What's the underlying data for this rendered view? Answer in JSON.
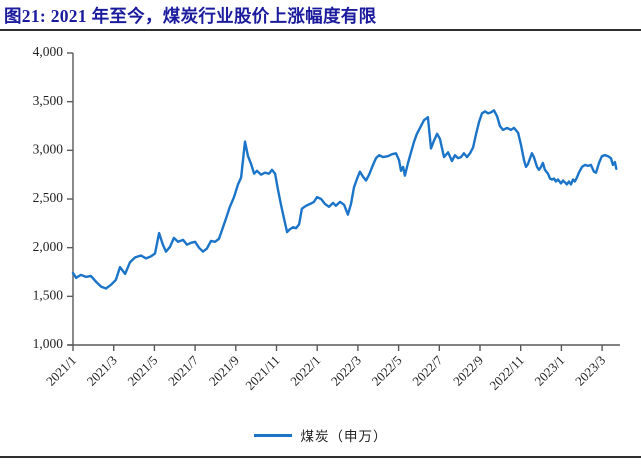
{
  "header": {
    "title": "图21:  2021 年至今，煤炭行业股价上涨幅度有限"
  },
  "chart_data": {
    "type": "line",
    "title": "图21:  2021 年至今，煤炭行业股价上涨幅度有限",
    "xlabel": "",
    "ylabel": "",
    "ylim": [
      1000,
      4000
    ],
    "y_tick_step": 500,
    "y_ticks": [
      {
        "value": 4000,
        "label": "4,000"
      },
      {
        "value": 3500,
        "label": "3,500"
      },
      {
        "value": 3000,
        "label": "3,000"
      },
      {
        "value": 2500,
        "label": "2,500"
      },
      {
        "value": 2000,
        "label": "2,000"
      },
      {
        "value": 1500,
        "label": "1,500"
      },
      {
        "value": 1000,
        "label": "1,000"
      }
    ],
    "x_ticks": [
      {
        "month": 0,
        "label": "2021/1"
      },
      {
        "month": 2,
        "label": "2021/3"
      },
      {
        "month": 4,
        "label": "2021/5"
      },
      {
        "month": 6,
        "label": "2021/7"
      },
      {
        "month": 8,
        "label": "2021/9"
      },
      {
        "month": 10,
        "label": "2021/11"
      },
      {
        "month": 12,
        "label": "2022/1"
      },
      {
        "month": 14,
        "label": "2022/3"
      },
      {
        "month": 16,
        "label": "2022/5"
      },
      {
        "month": 18,
        "label": "2022/7"
      },
      {
        "month": 20,
        "label": "2022/9"
      },
      {
        "month": 22,
        "label": "2022/11"
      },
      {
        "month": 24,
        "label": "2023/1"
      },
      {
        "month": 26,
        "label": "2023/3"
      }
    ],
    "grid": false,
    "legend_position": "bottom-center",
    "line_color": "#1b74c8",
    "series": [
      {
        "name": "煤炭（申万）",
        "color": "#1b74c8",
        "points": [
          [
            0.0,
            1740
          ],
          [
            0.15,
            1690
          ],
          [
            0.39,
            1720
          ],
          [
            0.64,
            1700
          ],
          [
            0.88,
            1710
          ],
          [
            1.13,
            1650
          ],
          [
            1.38,
            1600
          ],
          [
            1.62,
            1580
          ],
          [
            1.87,
            1620
          ],
          [
            2.11,
            1670
          ],
          [
            2.31,
            1800
          ],
          [
            2.56,
            1730
          ],
          [
            2.8,
            1850
          ],
          [
            3.05,
            1900
          ],
          [
            3.34,
            1920
          ],
          [
            3.59,
            1890
          ],
          [
            3.83,
            1910
          ],
          [
            4.03,
            1940
          ],
          [
            4.23,
            2150
          ],
          [
            4.42,
            2030
          ],
          [
            4.57,
            1960
          ],
          [
            4.77,
            2010
          ],
          [
            4.96,
            2100
          ],
          [
            5.16,
            2060
          ],
          [
            5.41,
            2080
          ],
          [
            5.6,
            2030
          ],
          [
            5.8,
            2050
          ],
          [
            6.0,
            2060
          ],
          [
            6.19,
            2000
          ],
          [
            6.39,
            1960
          ],
          [
            6.58,
            1990
          ],
          [
            6.78,
            2070
          ],
          [
            6.98,
            2060
          ],
          [
            7.17,
            2090
          ],
          [
            7.32,
            2180
          ],
          [
            7.52,
            2300
          ],
          [
            7.71,
            2420
          ],
          [
            7.91,
            2520
          ],
          [
            8.11,
            2650
          ],
          [
            8.26,
            2720
          ],
          [
            8.45,
            3090
          ],
          [
            8.6,
            2940
          ],
          [
            8.75,
            2860
          ],
          [
            8.9,
            2760
          ],
          [
            9.04,
            2790
          ],
          [
            9.24,
            2750
          ],
          [
            9.43,
            2770
          ],
          [
            9.63,
            2760
          ],
          [
            9.78,
            2800
          ],
          [
            9.93,
            2760
          ],
          [
            10.07,
            2600
          ],
          [
            10.22,
            2440
          ],
          [
            10.37,
            2300
          ],
          [
            10.52,
            2160
          ],
          [
            10.66,
            2190
          ],
          [
            10.81,
            2210
          ],
          [
            10.96,
            2200
          ],
          [
            11.11,
            2240
          ],
          [
            11.25,
            2400
          ],
          [
            11.45,
            2430
          ],
          [
            11.65,
            2450
          ],
          [
            11.84,
            2470
          ],
          [
            11.99,
            2520
          ],
          [
            12.19,
            2500
          ],
          [
            12.38,
            2450
          ],
          [
            12.58,
            2420
          ],
          [
            12.78,
            2460
          ],
          [
            12.92,
            2430
          ],
          [
            13.12,
            2470
          ],
          [
            13.32,
            2440
          ],
          [
            13.51,
            2340
          ],
          [
            13.66,
            2450
          ],
          [
            13.81,
            2620
          ],
          [
            13.96,
            2710
          ],
          [
            14.1,
            2780
          ],
          [
            14.25,
            2730
          ],
          [
            14.4,
            2690
          ],
          [
            14.55,
            2750
          ],
          [
            14.74,
            2850
          ],
          [
            14.89,
            2920
          ],
          [
            15.04,
            2950
          ],
          [
            15.23,
            2930
          ],
          [
            15.48,
            2940
          ],
          [
            15.68,
            2960
          ],
          [
            15.87,
            2970
          ],
          [
            16.02,
            2900
          ],
          [
            16.12,
            2790
          ],
          [
            16.22,
            2830
          ],
          [
            16.31,
            2740
          ],
          [
            16.46,
            2870
          ],
          [
            16.61,
            2980
          ],
          [
            16.76,
            3090
          ],
          [
            16.9,
            3170
          ],
          [
            17.05,
            3230
          ],
          [
            17.25,
            3310
          ],
          [
            17.44,
            3340
          ],
          [
            17.59,
            3020
          ],
          [
            17.74,
            3100
          ],
          [
            17.89,
            3170
          ],
          [
            18.03,
            3120
          ],
          [
            18.23,
            2930
          ],
          [
            18.43,
            2980
          ],
          [
            18.62,
            2890
          ],
          [
            18.77,
            2950
          ],
          [
            18.92,
            2920
          ],
          [
            19.07,
            2930
          ],
          [
            19.21,
            2970
          ],
          [
            19.36,
            2930
          ],
          [
            19.51,
            2970
          ],
          [
            19.66,
            3030
          ],
          [
            19.8,
            3160
          ],
          [
            19.95,
            3290
          ],
          [
            20.1,
            3380
          ],
          [
            20.25,
            3400
          ],
          [
            20.39,
            3380
          ],
          [
            20.54,
            3390
          ],
          [
            20.69,
            3410
          ],
          [
            20.84,
            3350
          ],
          [
            20.98,
            3250
          ],
          [
            21.13,
            3210
          ],
          [
            21.33,
            3230
          ],
          [
            21.52,
            3210
          ],
          [
            21.67,
            3230
          ],
          [
            21.87,
            3180
          ],
          [
            22.01,
            3060
          ],
          [
            22.16,
            2900
          ],
          [
            22.26,
            2830
          ],
          [
            22.36,
            2860
          ],
          [
            22.46,
            2920
          ],
          [
            22.55,
            2970
          ],
          [
            22.65,
            2930
          ],
          [
            22.8,
            2830
          ],
          [
            22.9,
            2800
          ],
          [
            23.0,
            2830
          ],
          [
            23.09,
            2870
          ],
          [
            23.19,
            2800
          ],
          [
            23.34,
            2760
          ],
          [
            23.44,
            2710
          ],
          [
            23.54,
            2700
          ],
          [
            23.64,
            2710
          ],
          [
            23.73,
            2680
          ],
          [
            23.83,
            2700
          ],
          [
            23.98,
            2660
          ],
          [
            24.08,
            2690
          ],
          [
            24.18,
            2670
          ],
          [
            24.27,
            2650
          ],
          [
            24.37,
            2680
          ],
          [
            24.47,
            2650
          ],
          [
            24.57,
            2700
          ],
          [
            24.66,
            2680
          ],
          [
            24.76,
            2720
          ],
          [
            24.86,
            2770
          ],
          [
            25.01,
            2830
          ],
          [
            25.16,
            2850
          ],
          [
            25.3,
            2840
          ],
          [
            25.45,
            2850
          ],
          [
            25.6,
            2780
          ],
          [
            25.7,
            2770
          ],
          [
            25.85,
            2870
          ],
          [
            25.99,
            2940
          ],
          [
            26.14,
            2950
          ],
          [
            26.29,
            2940
          ],
          [
            26.43,
            2920
          ],
          [
            26.53,
            2850
          ],
          [
            26.63,
            2880
          ],
          [
            26.7,
            2810
          ]
        ]
      }
    ]
  }
}
